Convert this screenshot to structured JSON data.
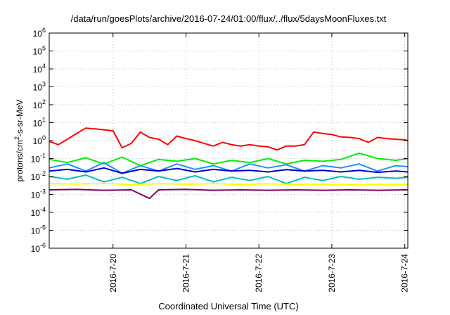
{
  "chart_data": {
    "type": "line",
    "title": "/data/run/goesPlots/archive/2016-07-24/01:00/flux/../flux/5daysMoonFluxes.txt",
    "xlabel": "Coordinated Universal Time (UTC)",
    "ylabel": {
      "pre": "protons/cm",
      "sup": "2",
      "post": "-s-sr-MeV"
    },
    "yscale": "log",
    "ylim": [
      1e-06,
      1000000.0
    ],
    "xlim": [
      "2016-07-19T03:00",
      "2016-07-24T01:00"
    ],
    "grid": true,
    "legend": "none",
    "y_ticks": [
      {
        "value": 1e-06,
        "base": "10",
        "exp": "-6"
      },
      {
        "value": 1e-05,
        "base": "10",
        "exp": "-5"
      },
      {
        "value": 0.0001,
        "base": "10",
        "exp": "-4"
      },
      {
        "value": 0.001,
        "base": "10",
        "exp": "-3"
      },
      {
        "value": 0.01,
        "base": "10",
        "exp": "-2"
      },
      {
        "value": 0.1,
        "base": "10",
        "exp": "-1"
      },
      {
        "value": 1,
        "base": "10",
        "exp": "0"
      },
      {
        "value": 10,
        "base": "10",
        "exp": "1"
      },
      {
        "value": 100,
        "base": "10",
        "exp": "2"
      },
      {
        "value": 1000,
        "base": "10",
        "exp": "3"
      },
      {
        "value": 10000,
        "base": "10",
        "exp": "4"
      },
      {
        "value": 100000,
        "base": "10",
        "exp": "5"
      },
      {
        "value": 1000000,
        "base": "10",
        "exp": "6"
      }
    ],
    "x_ticks": [
      {
        "value": "2016-07-20T00:00",
        "label": "2016-7-20"
      },
      {
        "value": "2016-07-21T00:00",
        "label": "2016-7-21"
      },
      {
        "value": "2016-07-22T00:00",
        "label": "2016-7-22"
      },
      {
        "value": "2016-07-23T00:00",
        "label": "2016-7-23"
      },
      {
        "value": "2016-07-24T00:00",
        "label": "2016-7-24"
      }
    ],
    "series": [
      {
        "color": "#ff0000",
        "x": [
          "2016-07-19T03:00",
          "2016-07-19T06:00",
          "2016-07-19T09:00",
          "2016-07-19T12:00",
          "2016-07-19T15:00",
          "2016-07-19T18:00",
          "2016-07-19T21:00",
          "2016-07-20T00:00",
          "2016-07-20T03:00",
          "2016-07-20T06:00",
          "2016-07-20T09:00",
          "2016-07-20T12:00",
          "2016-07-20T15:00",
          "2016-07-20T18:00",
          "2016-07-20T21:00",
          "2016-07-21T00:00",
          "2016-07-21T03:00",
          "2016-07-21T06:00",
          "2016-07-21T09:00",
          "2016-07-21T12:00",
          "2016-07-21T15:00",
          "2016-07-21T18:00",
          "2016-07-21T21:00",
          "2016-07-22T00:00",
          "2016-07-22T03:00",
          "2016-07-22T06:00",
          "2016-07-22T09:00",
          "2016-07-22T12:00",
          "2016-07-22T15:00",
          "2016-07-22T18:00",
          "2016-07-22T21:00",
          "2016-07-23T00:00",
          "2016-07-23T03:00",
          "2016-07-23T06:00",
          "2016-07-23T09:00",
          "2016-07-23T12:00",
          "2016-07-23T15:00",
          "2016-07-23T18:00",
          "2016-07-23T21:00",
          "2016-07-24T00:00",
          "2016-07-24T01:00"
        ],
        "values": [
          0.9,
          0.6,
          1.2,
          2.5,
          5,
          4.5,
          4,
          3.5,
          0.4,
          0.7,
          3,
          1.5,
          1.2,
          0.6,
          1.8,
          1.3,
          1,
          0.7,
          0.5,
          0.8,
          0.6,
          0.5,
          0.6,
          0.5,
          0.45,
          0.3,
          0.5,
          0.5,
          0.6,
          3,
          2.5,
          2.2,
          1.6,
          1.5,
          1.3,
          0.8,
          1.5,
          1.3,
          1.2,
          1.1,
          1.0
        ]
      },
      {
        "color": "#00ee00",
        "x": [
          "2016-07-19T03:00",
          "2016-07-19T09:00",
          "2016-07-19T15:00",
          "2016-07-19T21:00",
          "2016-07-20T03:00",
          "2016-07-20T09:00",
          "2016-07-20T15:00",
          "2016-07-20T21:00",
          "2016-07-21T03:00",
          "2016-07-21T09:00",
          "2016-07-21T15:00",
          "2016-07-21T21:00",
          "2016-07-22T03:00",
          "2016-07-22T09:00",
          "2016-07-22T15:00",
          "2016-07-22T21:00",
          "2016-07-23T03:00",
          "2016-07-23T09:00",
          "2016-07-23T15:00",
          "2016-07-23T21:00",
          "2016-07-24T01:00"
        ],
        "values": [
          0.09,
          0.06,
          0.11,
          0.05,
          0.12,
          0.04,
          0.09,
          0.07,
          0.1,
          0.05,
          0.08,
          0.06,
          0.1,
          0.05,
          0.08,
          0.07,
          0.09,
          0.2,
          0.1,
          0.08,
          0.1
        ]
      },
      {
        "color": "#1e90ff",
        "x": [
          "2016-07-19T03:00",
          "2016-07-19T09:00",
          "2016-07-19T15:00",
          "2016-07-19T21:00",
          "2016-07-20T03:00",
          "2016-07-20T09:00",
          "2016-07-20T15:00",
          "2016-07-20T21:00",
          "2016-07-21T03:00",
          "2016-07-21T09:00",
          "2016-07-21T15:00",
          "2016-07-21T21:00",
          "2016-07-22T03:00",
          "2016-07-22T09:00",
          "2016-07-22T15:00",
          "2016-07-22T21:00",
          "2016-07-23T03:00",
          "2016-07-23T09:00",
          "2016-07-23T15:00",
          "2016-07-23T21:00",
          "2016-07-24T01:00"
        ],
        "values": [
          0.03,
          0.05,
          0.02,
          0.06,
          0.015,
          0.04,
          0.02,
          0.05,
          0.025,
          0.04,
          0.02,
          0.05,
          0.03,
          0.045,
          0.02,
          0.04,
          0.03,
          0.05,
          0.02,
          0.04,
          0.035
        ]
      },
      {
        "color": "#0000cc",
        "x": [
          "2016-07-19T03:00",
          "2016-07-19T09:00",
          "2016-07-19T15:00",
          "2016-07-19T21:00",
          "2016-07-20T03:00",
          "2016-07-20T09:00",
          "2016-07-20T15:00",
          "2016-07-20T21:00",
          "2016-07-21T03:00",
          "2016-07-21T09:00",
          "2016-07-21T15:00",
          "2016-07-21T21:00",
          "2016-07-22T03:00",
          "2016-07-22T09:00",
          "2016-07-22T15:00",
          "2016-07-22T21:00",
          "2016-07-23T03:00",
          "2016-07-23T09:00",
          "2016-07-23T15:00",
          "2016-07-23T21:00",
          "2016-07-24T01:00"
        ],
        "values": [
          0.02,
          0.025,
          0.018,
          0.03,
          0.015,
          0.025,
          0.02,
          0.028,
          0.018,
          0.025,
          0.02,
          0.022,
          0.018,
          0.024,
          0.02,
          0.022,
          0.018,
          0.022,
          0.017,
          0.02,
          0.018
        ]
      },
      {
        "color": "#00bfbf",
        "x": [
          "2016-07-19T03:00",
          "2016-07-19T09:00",
          "2016-07-19T15:00",
          "2016-07-19T21:00",
          "2016-07-20T03:00",
          "2016-07-20T09:00",
          "2016-07-20T15:00",
          "2016-07-20T21:00",
          "2016-07-21T03:00",
          "2016-07-21T09:00",
          "2016-07-21T15:00",
          "2016-07-21T21:00",
          "2016-07-22T03:00",
          "2016-07-22T09:00",
          "2016-07-22T15:00",
          "2016-07-22T21:00",
          "2016-07-23T03:00",
          "2016-07-23T09:00",
          "2016-07-23T15:00",
          "2016-07-23T21:00",
          "2016-07-24T01:00"
        ],
        "values": [
          0.01,
          0.007,
          0.012,
          0.005,
          0.009,
          0.004,
          0.01,
          0.006,
          0.011,
          0.005,
          0.009,
          0.006,
          0.01,
          0.004,
          0.009,
          0.006,
          0.01,
          0.007,
          0.009,
          0.008,
          0.009
        ]
      },
      {
        "color": "#ffff00",
        "x": [
          "2016-07-19T03:00",
          "2016-07-19T12:00",
          "2016-07-19T21:00",
          "2016-07-20T06:00",
          "2016-07-20T15:00",
          "2016-07-21T00:00",
          "2016-07-21T09:00",
          "2016-07-21T18:00",
          "2016-07-22T03:00",
          "2016-07-22T12:00",
          "2016-07-22T21:00",
          "2016-07-23T06:00",
          "2016-07-23T15:00",
          "2016-07-24T00:00",
          "2016-07-24T01:00"
        ],
        "values": [
          0.004,
          0.0038,
          0.0042,
          0.0035,
          0.004,
          0.0037,
          0.004,
          0.0036,
          0.0039,
          0.0036,
          0.0038,
          0.0035,
          0.0037,
          0.0036,
          0.0036
        ]
      },
      {
        "color": "#800060",
        "x": [
          "2016-07-19T03:00",
          "2016-07-19T12:00",
          "2016-07-19T21:00",
          "2016-07-20T06:00",
          "2016-07-20T12:00",
          "2016-07-20T15:00",
          "2016-07-21T00:00",
          "2016-07-21T09:00",
          "2016-07-21T18:00",
          "2016-07-22T03:00",
          "2016-07-22T12:00",
          "2016-07-22T21:00",
          "2016-07-23T06:00",
          "2016-07-23T15:00",
          "2016-07-24T00:00",
          "2016-07-24T01:00"
        ],
        "values": [
          0.0018,
          0.0019,
          0.0017,
          0.0018,
          0.0006,
          0.0018,
          0.0019,
          0.0017,
          0.0018,
          0.0017,
          0.0018,
          0.0017,
          0.0018,
          0.0017,
          0.0018,
          0.0018
        ]
      }
    ]
  }
}
